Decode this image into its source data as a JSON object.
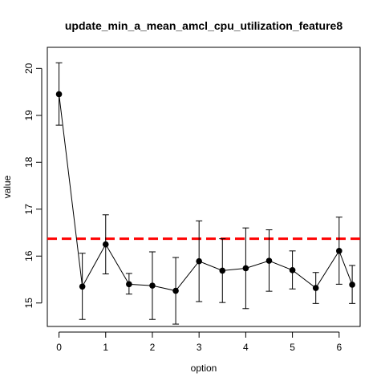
{
  "chart_data": {
    "type": "line",
    "title": "update_min_a_mean_amcl_cpu_utilization_feature8",
    "xlabel": "option",
    "ylabel": "value",
    "x_ticks": [
      "0",
      "1",
      "2",
      "3",
      "4",
      "5",
      "6"
    ],
    "y_ticks": [
      "15",
      "16",
      "17",
      "18",
      "19",
      "20"
    ],
    "xlim": [
      -0.25,
      6.45
    ],
    "ylim": [
      14.5,
      20.45
    ],
    "grid": false,
    "series": [
      {
        "x": [
          0,
          0.5,
          1,
          1.5,
          2,
          2.5,
          3,
          3.5,
          4,
          4.5,
          5,
          5.5,
          6,
          6.28
        ],
        "y": [
          19.45,
          15.35,
          16.25,
          15.4,
          15.37,
          15.26,
          15.89,
          15.69,
          15.74,
          15.9,
          15.7,
          15.32,
          16.11,
          15.39
        ],
        "error_low": [
          18.79,
          14.65,
          15.62,
          15.19,
          14.65,
          14.55,
          15.03,
          15.01,
          14.88,
          15.25,
          15.3,
          14.99,
          15.4,
          14.99
        ],
        "error_high": [
          20.12,
          16.06,
          16.88,
          15.63,
          16.09,
          15.97,
          16.75,
          16.37,
          16.6,
          16.56,
          16.11,
          15.65,
          16.83,
          15.8
        ],
        "color": "#000000"
      }
    ],
    "reference_line": {
      "y": 16.37,
      "color": "#ff0000",
      "style": "dashed"
    }
  }
}
